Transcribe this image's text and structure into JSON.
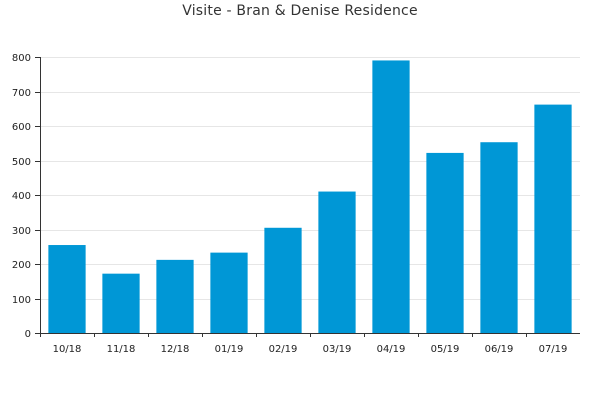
{
  "chart_data": {
    "type": "bar",
    "title": "Visite - Bran & Denise Residence",
    "xlabel": "",
    "ylabel": "",
    "categories": [
      "10/18",
      "11/18",
      "12/18",
      "01/19",
      "02/19",
      "03/19",
      "04/19",
      "05/19",
      "06/19",
      "07/19"
    ],
    "values": [
      255,
      172,
      212,
      233,
      305,
      410,
      790,
      522,
      553,
      662
    ],
    "ylim": [
      0,
      800
    ],
    "yticks": [
      0,
      100,
      200,
      300,
      400,
      500,
      600,
      700,
      800
    ],
    "grid": true,
    "legend": "none",
    "colors": {
      "bar": "#0097d6",
      "grid": "#e6e6e6",
      "axis": "#333333"
    }
  }
}
